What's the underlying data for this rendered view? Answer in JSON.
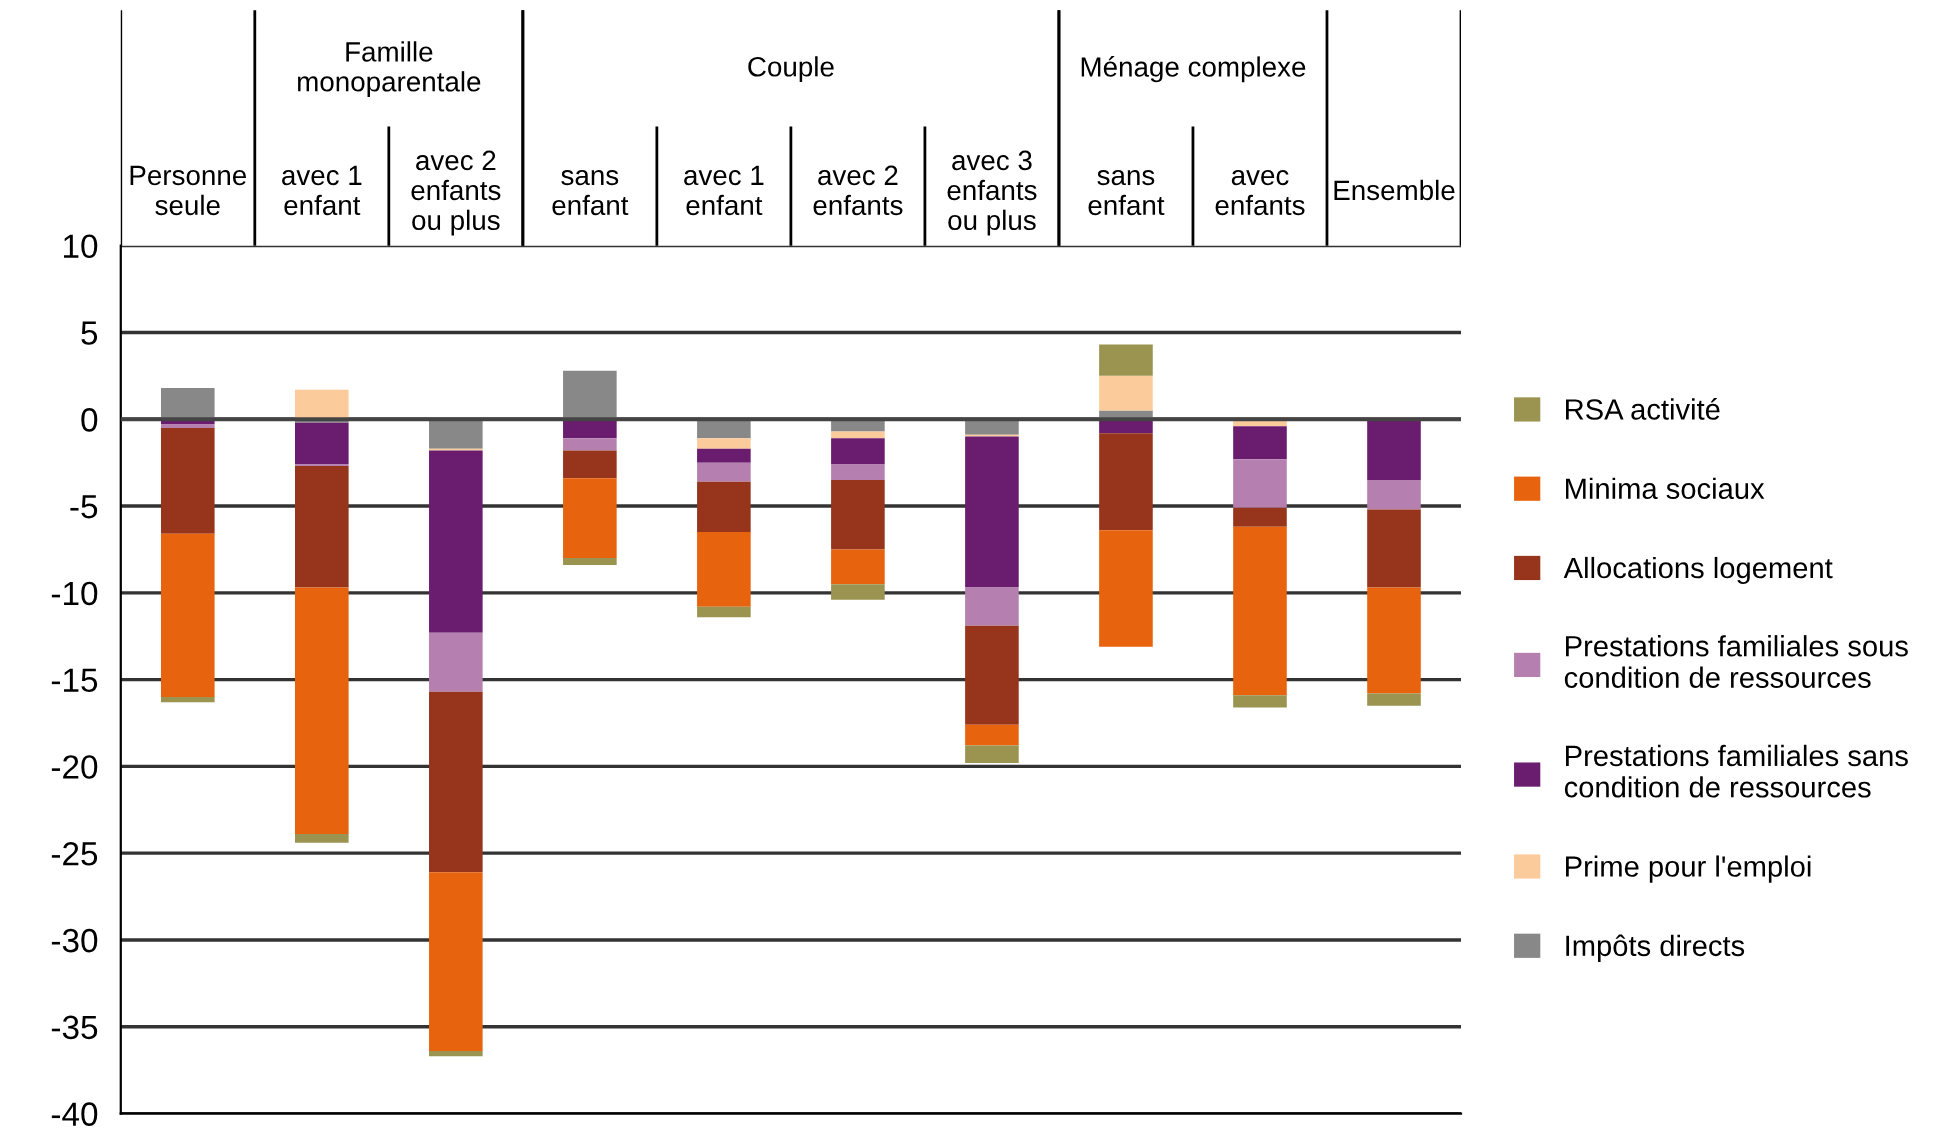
{
  "chart_data": {
    "type": "bar",
    "stacked": true,
    "categories": [
      "Personne\nseule",
      "avec 1\nenfant",
      "avec 2\nenfants\nou plus",
      "sans\nenfant",
      "avec 1\nenfant",
      "avec 2\nenfants",
      "avec 3\nenfants\nou plus",
      "sans\nenfant",
      "avec\nenfants",
      "Ensemble"
    ],
    "annotations": [
      "Famille\nmonoparentale",
      "Couple",
      "Ménage complexe"
    ],
    "series": [
      {
        "name": "Impôts directs",
        "color": "#888888",
        "values": [
          1.8,
          -0.2,
          -1.7,
          2.8,
          -1.1,
          -0.7,
          -0.9,
          0.5,
          0,
          0
        ]
      },
      {
        "name": "Prime pour l'emploi",
        "color": "#fccb9b",
        "values": [
          0,
          1.7,
          -0.1,
          0,
          -0.6,
          -0.4,
          -0.1,
          2.0,
          -0.4,
          0
        ]
      },
      {
        "name": "Prestations familiales sans\ncondition de ressources",
        "color": "#6a1c6e",
        "values": [
          -0.3,
          -2.4,
          -10.5,
          -1.1,
          -0.8,
          -1.5,
          -8.7,
          -0.8,
          -1.9,
          -3.5
        ]
      },
      {
        "name": "Prestations familiales sous\ncondition de ressources",
        "color": "#b580b0",
        "values": [
          -0.2,
          -0.1,
          -3.4,
          -0.7,
          -1.1,
          -0.9,
          -2.2,
          0,
          -2.8,
          -1.7
        ]
      },
      {
        "name": "Allocations logement",
        "color": "#96341c",
        "values": [
          -6.1,
          -7.0,
          -10.4,
          -1.6,
          -2.9,
          -4.0,
          -5.7,
          -5.6,
          -1.1,
          -4.5
        ]
      },
      {
        "name": "Minima sociaux",
        "color": "#e8630e",
        "values": [
          -9.4,
          -14.2,
          -10.3,
          -4.6,
          -4.3,
          -2.0,
          -1.2,
          -6.7,
          -9.7,
          -6.1
        ]
      },
      {
        "name": "RSA activité",
        "color": "#9a9450",
        "values": [
          -0.3,
          -0.5,
          -0.3,
          -0.4,
          -0.6,
          -0.9,
          -1.0,
          1.8,
          -0.7,
          -0.7
        ]
      }
    ],
    "ylim": [
      -40,
      10
    ],
    "yticks": [
      -40,
      -35,
      -30,
      -25,
      -20,
      -15,
      -10,
      -5,
      0,
      5,
      10
    ],
    "grid": "y",
    "legend": "right"
  }
}
